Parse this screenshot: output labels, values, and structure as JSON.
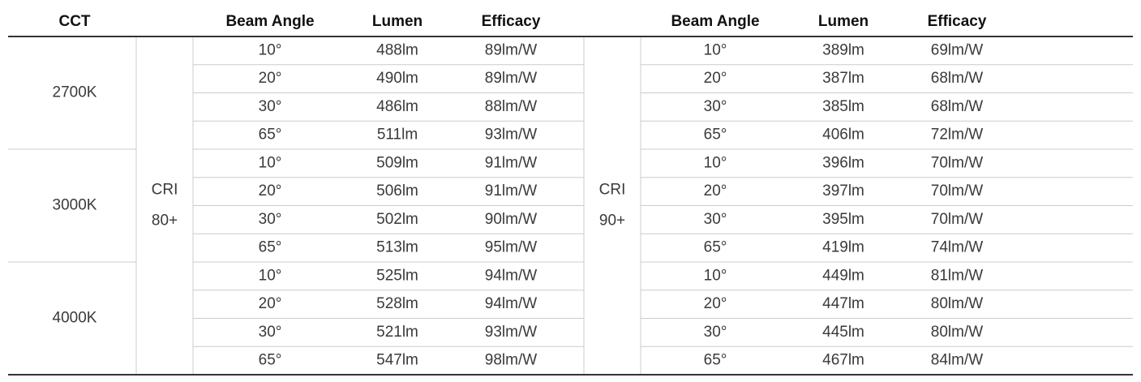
{
  "header": {
    "cct": "CCT",
    "left": [
      "Beam Angle",
      "Lumen",
      "Efficacy"
    ],
    "right": [
      "Beam Angle",
      "Lumen",
      "Efficacy"
    ]
  },
  "cri": [
    [
      "CRI",
      "80+"
    ],
    [
      "CRI",
      "90+"
    ]
  ],
  "groups": [
    {
      "cct": "2700K",
      "rows": [
        {
          "left": [
            "10°",
            "488lm",
            "89lm/W"
          ],
          "right": [
            "10°",
            "389lm",
            "69lm/W"
          ]
        },
        {
          "left": [
            "20°",
            "490lm",
            "89lm/W"
          ],
          "right": [
            "20°",
            "387lm",
            "68lm/W"
          ]
        },
        {
          "left": [
            "30°",
            "486lm",
            "88lm/W"
          ],
          "right": [
            "30°",
            "385lm",
            "68lm/W"
          ]
        },
        {
          "left": [
            "65°",
            "511lm",
            "93lm/W"
          ],
          "right": [
            "65°",
            "406lm",
            "72lm/W"
          ]
        }
      ]
    },
    {
      "cct": "3000K",
      "rows": [
        {
          "left": [
            "10°",
            "509lm",
            "91lm/W"
          ],
          "right": [
            "10°",
            "396lm",
            "70lm/W"
          ]
        },
        {
          "left": [
            "20°",
            "506lm",
            "91lm/W"
          ],
          "right": [
            "20°",
            "397lm",
            "70lm/W"
          ]
        },
        {
          "left": [
            "30°",
            "502lm",
            "90lm/W"
          ],
          "right": [
            "30°",
            "395lm",
            "70lm/W"
          ]
        },
        {
          "left": [
            "65°",
            "513lm",
            "95lm/W"
          ],
          "right": [
            "65°",
            "419lm",
            "74lm/W"
          ]
        }
      ]
    },
    {
      "cct": "4000K",
      "rows": [
        {
          "left": [
            "10°",
            "525lm",
            "94lm/W"
          ],
          "right": [
            "10°",
            "449lm",
            "81lm/W"
          ]
        },
        {
          "left": [
            "20°",
            "528lm",
            "94lm/W"
          ],
          "right": [
            "20°",
            "447lm",
            "80lm/W"
          ]
        },
        {
          "left": [
            "30°",
            "521lm",
            "93lm/W"
          ],
          "right": [
            "30°",
            "445lm",
            "80lm/W"
          ]
        },
        {
          "left": [
            "65°",
            "547lm",
            "98lm/W"
          ],
          "right": [
            "65°",
            "467lm",
            "84lm/W"
          ]
        }
      ]
    }
  ]
}
